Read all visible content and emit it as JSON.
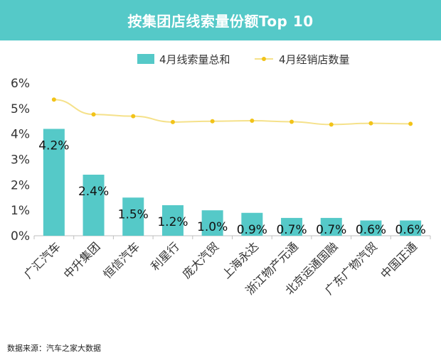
{
  "title": "按集团店线索量份额Top 10",
  "source": "数据来源：汽车之家大数据",
  "colors": {
    "header": "#55c9c8",
    "bar": "#55c9c8",
    "line": "#f5e18a",
    "marker": "#f2c318",
    "axis": "#bfbfbf"
  },
  "chart_data": {
    "type": "bar",
    "categories": [
      "广汇汽车",
      "中升集团",
      "恒信汽车",
      "利星行",
      "庞大汽贸",
      "上海永达",
      "浙江物产元通",
      "北京运通国融",
      "广东广物汽贸",
      "中国正通"
    ],
    "series": [
      {
        "name": "4月线索量总和",
        "type": "bar",
        "values": [
          4.2,
          2.4,
          1.5,
          1.2,
          1.0,
          0.9,
          0.7,
          0.7,
          0.6,
          0.6
        ],
        "labels": [
          "4.2%",
          "2.4%",
          "1.5%",
          "1.2%",
          "1.0%",
          "0.9%",
          "0.7%",
          "0.7%",
          "0.6%",
          "0.6%"
        ]
      },
      {
        "name": "4月经销店数量",
        "type": "line",
        "values": [
          5.35,
          4.77,
          4.7,
          4.47,
          4.5,
          4.52,
          4.48,
          4.37,
          4.42,
          4.4
        ]
      }
    ],
    "yticks": [
      "0%",
      "1%",
      "2%",
      "3%",
      "4%",
      "5%",
      "6%"
    ],
    "ylim": [
      0,
      6
    ],
    "legend_position": "top-center",
    "grid": false
  }
}
